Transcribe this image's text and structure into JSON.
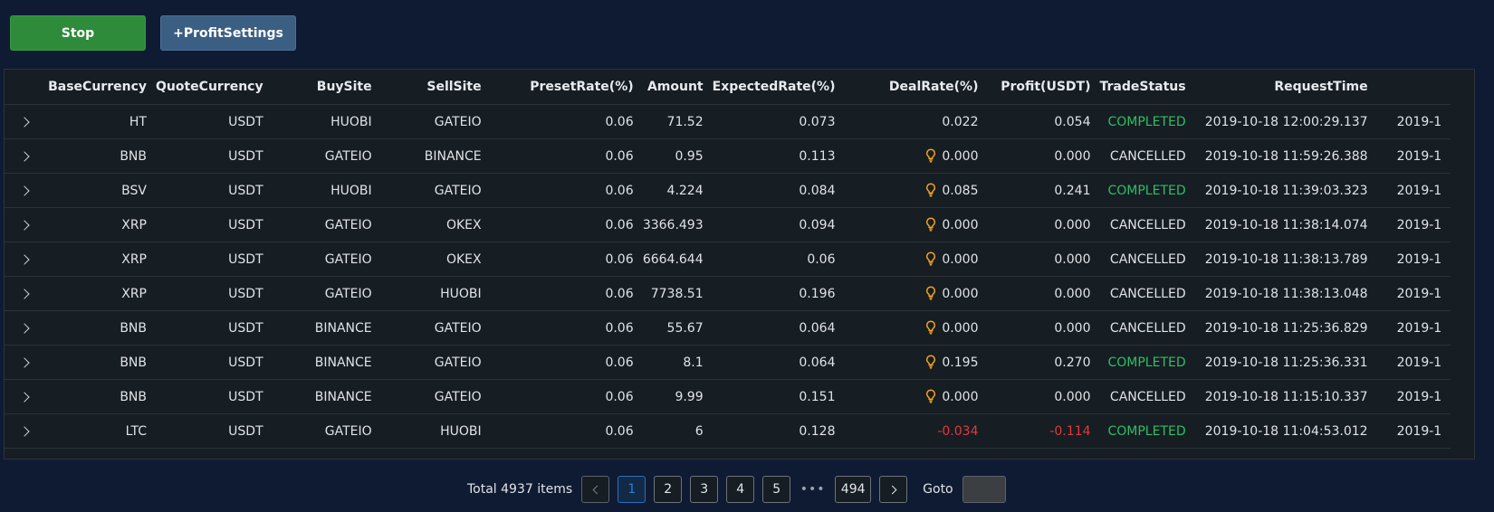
{
  "toolbar": {
    "stop_label": "Stop",
    "profit_settings_label": "+ProfitSettings"
  },
  "columns": {
    "base": "BaseCurrency",
    "quote": "QuoteCurrency",
    "buy": "BuySite",
    "sell": "SellSite",
    "preset": "PresetRate(%)",
    "amount": "Amount",
    "expected": "ExpectedRate(%)",
    "deal": "DealRate(%)",
    "profit": "Profit(USDT)",
    "status": "TradeStatus",
    "request": "RequestTime"
  },
  "rows": [
    {
      "base": "HT",
      "quote": "USDT",
      "buy": "HUOBI",
      "sell": "GATEIO",
      "preset": "0.06",
      "amount": "71.52",
      "expected": "0.073",
      "deal": "0.022",
      "bulb": false,
      "profit": "0.054",
      "status": "COMPLETED",
      "request": "2019-10-18 12:00:29.137",
      "tail": "2019-1",
      "negative": false
    },
    {
      "base": "BNB",
      "quote": "USDT",
      "buy": "GATEIO",
      "sell": "BINANCE",
      "preset": "0.06",
      "amount": "0.95",
      "expected": "0.113",
      "deal": "0.000",
      "bulb": true,
      "profit": "0.000",
      "status": "CANCELLED",
      "request": "2019-10-18 11:59:26.388",
      "tail": "2019-1",
      "negative": false
    },
    {
      "base": "BSV",
      "quote": "USDT",
      "buy": "HUOBI",
      "sell": "GATEIO",
      "preset": "0.06",
      "amount": "4.224",
      "expected": "0.084",
      "deal": "0.085",
      "bulb": true,
      "profit": "0.241",
      "status": "COMPLETED",
      "request": "2019-10-18 11:39:03.323",
      "tail": "2019-1",
      "negative": false
    },
    {
      "base": "XRP",
      "quote": "USDT",
      "buy": "GATEIO",
      "sell": "OKEX",
      "preset": "0.06",
      "amount": "3366.493",
      "expected": "0.094",
      "deal": "0.000",
      "bulb": true,
      "profit": "0.000",
      "status": "CANCELLED",
      "request": "2019-10-18 11:38:14.074",
      "tail": "2019-1",
      "negative": false
    },
    {
      "base": "XRP",
      "quote": "USDT",
      "buy": "GATEIO",
      "sell": "OKEX",
      "preset": "0.06",
      "amount": "6664.644",
      "expected": "0.06",
      "deal": "0.000",
      "bulb": true,
      "profit": "0.000",
      "status": "CANCELLED",
      "request": "2019-10-18 11:38:13.789",
      "tail": "2019-1",
      "negative": false
    },
    {
      "base": "XRP",
      "quote": "USDT",
      "buy": "GATEIO",
      "sell": "HUOBI",
      "preset": "0.06",
      "amount": "7738.51",
      "expected": "0.196",
      "deal": "0.000",
      "bulb": true,
      "profit": "0.000",
      "status": "CANCELLED",
      "request": "2019-10-18 11:38:13.048",
      "tail": "2019-1",
      "negative": false
    },
    {
      "base": "BNB",
      "quote": "USDT",
      "buy": "BINANCE",
      "sell": "GATEIO",
      "preset": "0.06",
      "amount": "55.67",
      "expected": "0.064",
      "deal": "0.000",
      "bulb": true,
      "profit": "0.000",
      "status": "CANCELLED",
      "request": "2019-10-18 11:25:36.829",
      "tail": "2019-1",
      "negative": false
    },
    {
      "base": "BNB",
      "quote": "USDT",
      "buy": "BINANCE",
      "sell": "GATEIO",
      "preset": "0.06",
      "amount": "8.1",
      "expected": "0.064",
      "deal": "0.195",
      "bulb": true,
      "profit": "0.270",
      "status": "COMPLETED",
      "request": "2019-10-18 11:25:36.331",
      "tail": "2019-1",
      "negative": false
    },
    {
      "base": "BNB",
      "quote": "USDT",
      "buy": "BINANCE",
      "sell": "GATEIO",
      "preset": "0.06",
      "amount": "9.99",
      "expected": "0.151",
      "deal": "0.000",
      "bulb": true,
      "profit": "0.000",
      "status": "CANCELLED",
      "request": "2019-10-18 11:15:10.337",
      "tail": "2019-1",
      "negative": false
    },
    {
      "base": "LTC",
      "quote": "USDT",
      "buy": "GATEIO",
      "sell": "HUOBI",
      "preset": "0.06",
      "amount": "6",
      "expected": "0.128",
      "deal": "-0.034",
      "bulb": false,
      "profit": "-0.114",
      "status": "COMPLETED",
      "request": "2019-10-18 11:04:53.012",
      "tail": "2019-1",
      "negative": true
    }
  ],
  "pagination": {
    "total_text": "Total 4937 items",
    "pages": [
      "1",
      "2",
      "3",
      "4",
      "5"
    ],
    "ellipsis": "•••",
    "last_page": "494",
    "current": "1",
    "goto_label": "Goto"
  },
  "colors": {
    "completed": "#2fbf64",
    "negative": "#e23a3a",
    "bulb": "#f0a020",
    "accent": "#2d7bd6"
  }
}
